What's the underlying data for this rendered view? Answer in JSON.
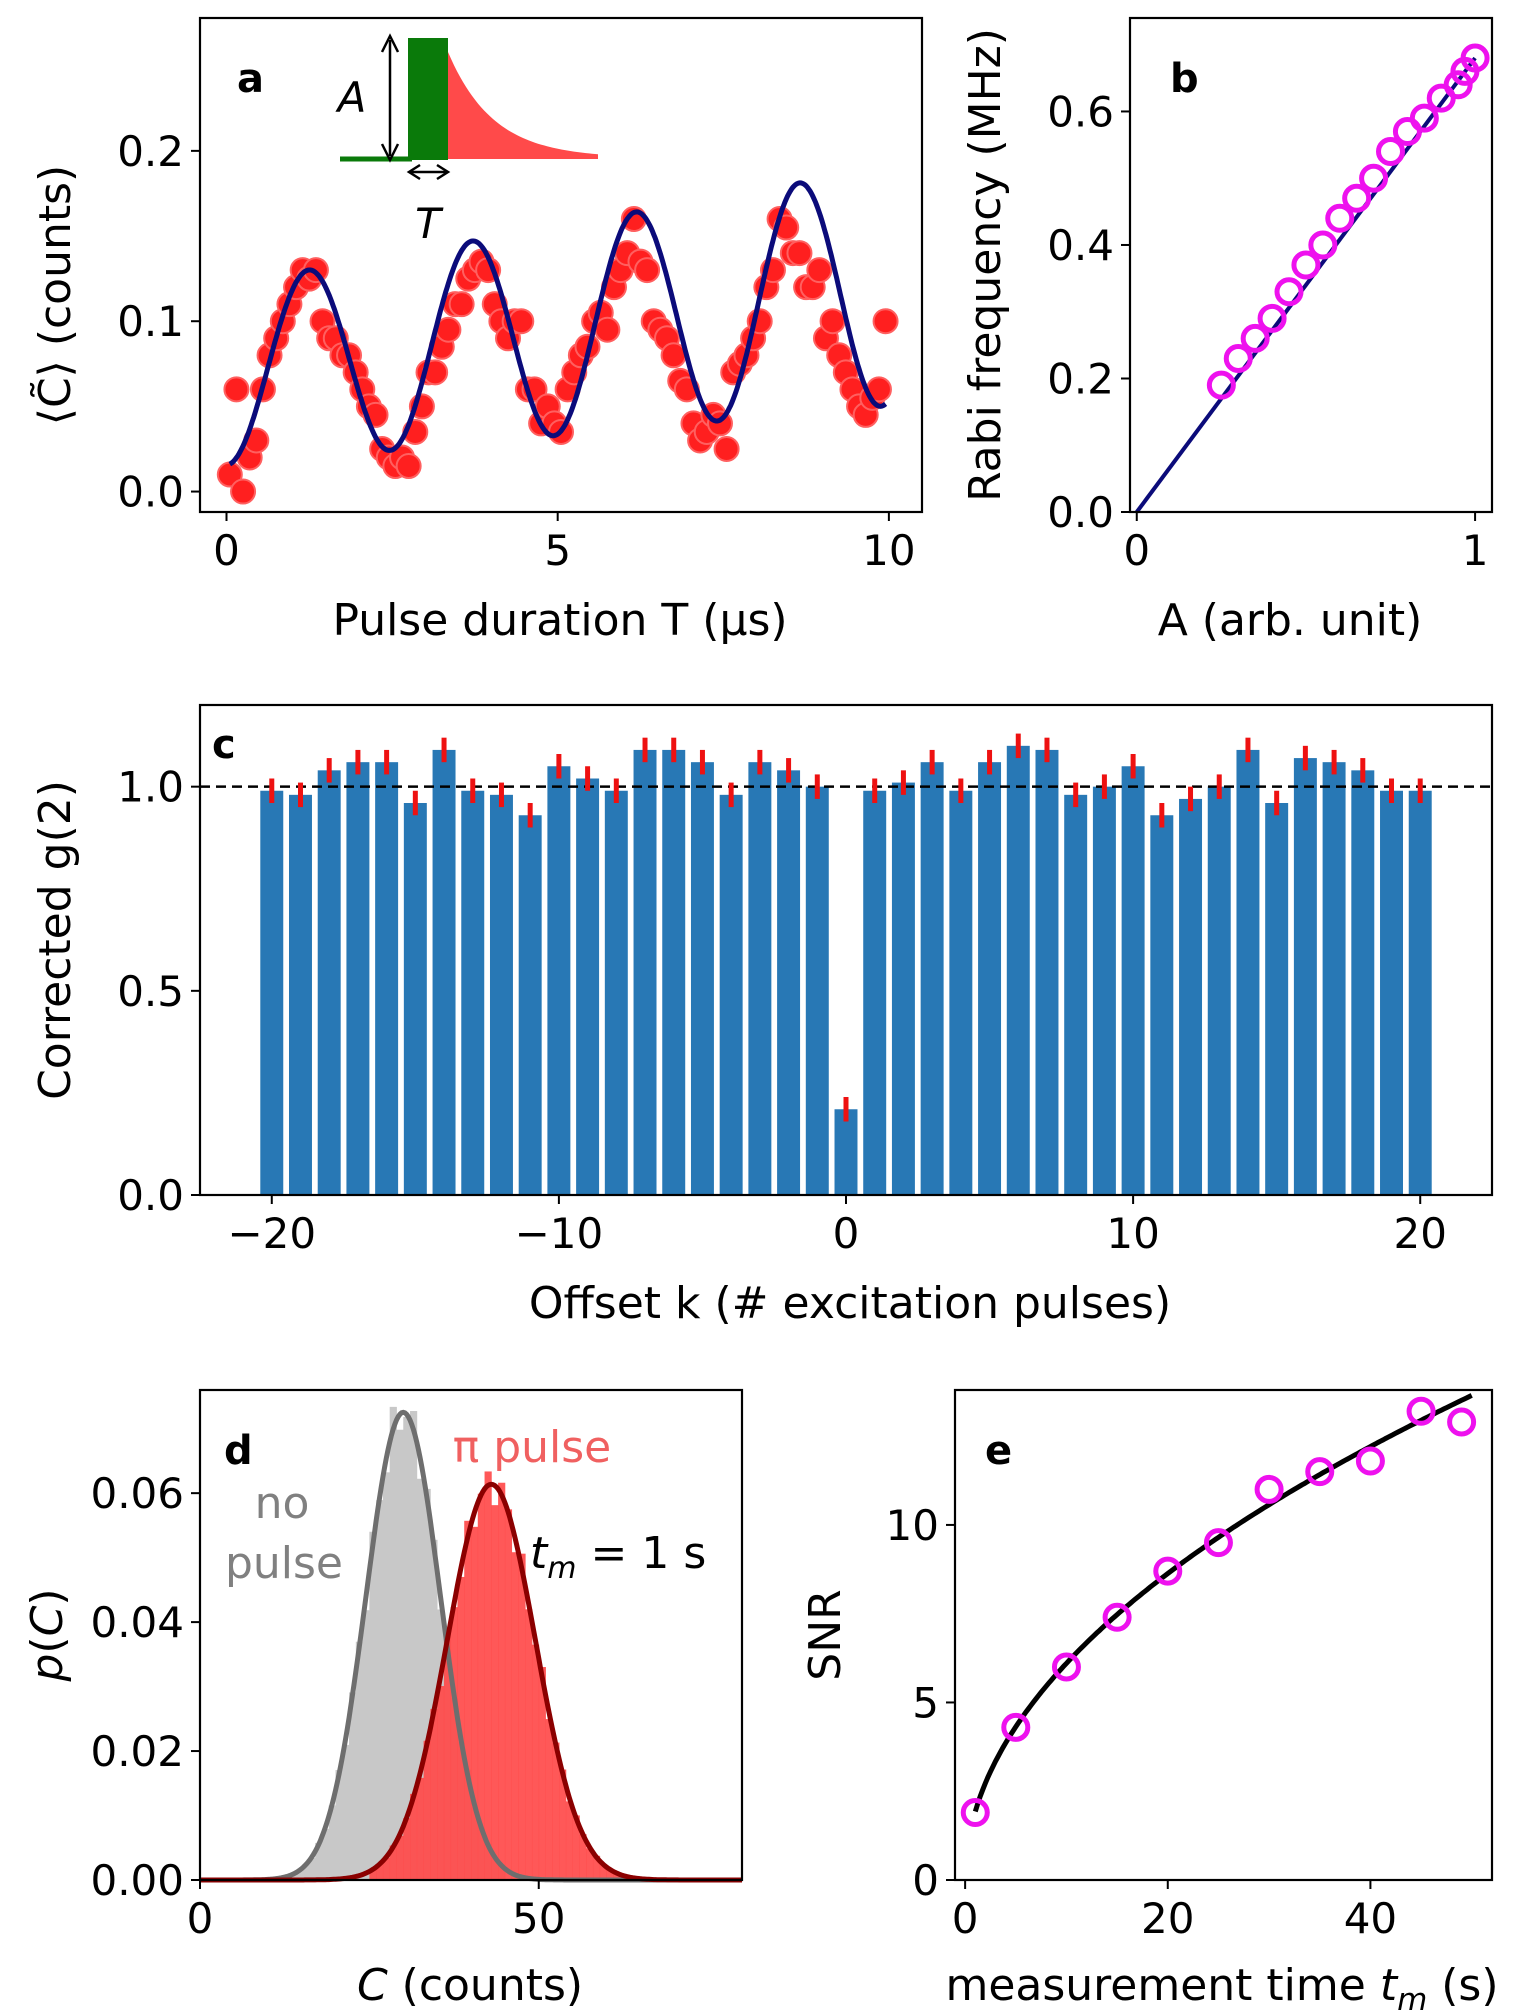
{
  "panels": {
    "a": {
      "label": "a",
      "xlabel": "Pulse duration T (µs)",
      "ylabel": "⟨C̃⟩ (counts)",
      "xticks": [
        "0",
        "5",
        "10"
      ],
      "yticks": [
        "0.0",
        "0.1",
        "0.2"
      ],
      "inset": {
        "amp_label": "A",
        "dur_label": "T"
      }
    },
    "b": {
      "label": "b",
      "xlabel": "A (arb. unit)",
      "ylabel": "Rabi frequency (MHz)",
      "xticks": [
        "0",
        "1"
      ],
      "yticks": [
        "0.0",
        "0.2",
        "0.4",
        "0.6"
      ]
    },
    "c": {
      "label": "c",
      "xlabel": "Offset k (# excitation pulses)",
      "ylabel": "Corrected g(2)",
      "xticks": [
        "−20",
        "−10",
        "0",
        "10",
        "20"
      ],
      "yticks": [
        "0.0",
        "0.5",
        "1.0"
      ]
    },
    "d": {
      "label": "d",
      "xlabel": "C (counts)",
      "ylabel": "p(C)",
      "xticks": [
        "0",
        "50"
      ],
      "yticks": [
        "0.00",
        "0.02",
        "0.04",
        "0.06"
      ],
      "annotations": {
        "no_pulse": [
          "no",
          "pulse"
        ],
        "pi_pulse": "π pulse",
        "tm": "t_m = 1 s"
      }
    },
    "e": {
      "label": "e",
      "xlabel": "measurement time t_m (s)",
      "ylabel": "SNR",
      "xticks": [
        "0",
        "20",
        "40"
      ],
      "yticks": [
        "0",
        "5",
        "10"
      ]
    }
  },
  "colors": {
    "scatter_red": "#ff1f1f",
    "fit_navy": "#0b0b7a",
    "magenta": "#ee11ee",
    "bar_blue": "#2878b5",
    "errbar_red": "#ee1111",
    "gray_hist": "#c8c8c8",
    "gray_fit": "#6e6e6e",
    "red_hist": "#ff4a4a",
    "darkred_fit": "#8b0000",
    "green_pulse": "#0a7a0a",
    "pi_text": "#f06060",
    "gray_text": "#808080"
  },
  "chart_data": [
    {
      "panel": "a",
      "type": "scatter",
      "xlim": [
        -0.4,
        10.5
      ],
      "ylim": [
        -0.012,
        0.278
      ],
      "points": [
        [
          0.05,
          0.01
        ],
        [
          0.15,
          0.06
        ],
        [
          0.25,
          0.0
        ],
        [
          0.35,
          0.02
        ],
        [
          0.45,
          0.03
        ],
        [
          0.55,
          0.06
        ],
        [
          0.65,
          0.08
        ],
        [
          0.75,
          0.09
        ],
        [
          0.85,
          0.1
        ],
        [
          0.95,
          0.11
        ],
        [
          1.05,
          0.12
        ],
        [
          1.15,
          0.13
        ],
        [
          1.25,
          0.125
        ],
        [
          1.35,
          0.13
        ],
        [
          1.45,
          0.1
        ],
        [
          1.55,
          0.09
        ],
        [
          1.65,
          0.09
        ],
        [
          1.75,
          0.08
        ],
        [
          1.85,
          0.08
        ],
        [
          1.95,
          0.07
        ],
        [
          2.05,
          0.06
        ],
        [
          2.15,
          0.05
        ],
        [
          2.25,
          0.045
        ],
        [
          2.35,
          0.025
        ],
        [
          2.45,
          0.02
        ],
        [
          2.55,
          0.015
        ],
        [
          2.65,
          0.02
        ],
        [
          2.75,
          0.015
        ],
        [
          2.85,
          0.035
        ],
        [
          2.95,
          0.05
        ],
        [
          3.05,
          0.07
        ],
        [
          3.15,
          0.07
        ],
        [
          3.25,
          0.085
        ],
        [
          3.35,
          0.095
        ],
        [
          3.45,
          0.11
        ],
        [
          3.55,
          0.11
        ],
        [
          3.65,
          0.125
        ],
        [
          3.75,
          0.13
        ],
        [
          3.85,
          0.135
        ],
        [
          3.95,
          0.13
        ],
        [
          4.05,
          0.11
        ],
        [
          4.15,
          0.1
        ],
        [
          4.25,
          0.09
        ],
        [
          4.35,
          0.1
        ],
        [
          4.45,
          0.1
        ],
        [
          4.55,
          0.06
        ],
        [
          4.65,
          0.06
        ],
        [
          4.75,
          0.04
        ],
        [
          4.85,
          0.05
        ],
        [
          4.95,
          0.04
        ],
        [
          5.05,
          0.035
        ],
        [
          5.15,
          0.06
        ],
        [
          5.25,
          0.07
        ],
        [
          5.35,
          0.08
        ],
        [
          5.45,
          0.085
        ],
        [
          5.55,
          0.1
        ],
        [
          5.65,
          0.105
        ],
        [
          5.75,
          0.095
        ],
        [
          5.85,
          0.12
        ],
        [
          5.95,
          0.13
        ],
        [
          6.05,
          0.14
        ],
        [
          6.15,
          0.16
        ],
        [
          6.25,
          0.135
        ],
        [
          6.35,
          0.13
        ],
        [
          6.45,
          0.1
        ],
        [
          6.55,
          0.095
        ],
        [
          6.65,
          0.09
        ],
        [
          6.75,
          0.08
        ],
        [
          6.85,
          0.065
        ],
        [
          6.95,
          0.06
        ],
        [
          7.05,
          0.04
        ],
        [
          7.15,
          0.03
        ],
        [
          7.25,
          0.035
        ],
        [
          7.35,
          0.045
        ],
        [
          7.45,
          0.04
        ],
        [
          7.55,
          0.025
        ],
        [
          7.65,
          0.07
        ],
        [
          7.75,
          0.075
        ],
        [
          7.85,
          0.08
        ],
        [
          7.95,
          0.09
        ],
        [
          8.05,
          0.1
        ],
        [
          8.15,
          0.12
        ],
        [
          8.25,
          0.13
        ],
        [
          8.35,
          0.16
        ],
        [
          8.45,
          0.155
        ],
        [
          8.55,
          0.14
        ],
        [
          8.65,
          0.14
        ],
        [
          8.75,
          0.12
        ],
        [
          8.85,
          0.12
        ],
        [
          8.95,
          0.13
        ],
        [
          9.05,
          0.09
        ],
        [
          9.15,
          0.1
        ],
        [
          9.25,
          0.08
        ],
        [
          9.35,
          0.07
        ],
        [
          9.45,
          0.06
        ],
        [
          9.55,
          0.05
        ],
        [
          9.65,
          0.045
        ],
        [
          9.75,
          0.055
        ],
        [
          9.85,
          0.06
        ],
        [
          9.95,
          0.1
        ]
      ],
      "fit": {
        "baseline": 0.0155,
        "amplitude_start": 0.053,
        "amplitude_slope": 0.0017,
        "offset_slope": 0.0035,
        "period_us": 2.47
      }
    },
    {
      "panel": "b",
      "type": "scatter",
      "xlim": [
        -0.02,
        1.05
      ],
      "ylim": [
        0,
        0.74
      ],
      "x": [
        0.25,
        0.3,
        0.35,
        0.4,
        0.45,
        0.5,
        0.55,
        0.6,
        0.65,
        0.7,
        0.75,
        0.8,
        0.85,
        0.9,
        0.95,
        0.97,
        1.0
      ],
      "y": [
        0.19,
        0.23,
        0.26,
        0.29,
        0.33,
        0.37,
        0.4,
        0.44,
        0.47,
        0.5,
        0.54,
        0.57,
        0.59,
        0.62,
        0.64,
        0.66,
        0.68
      ],
      "fit": {
        "type": "linear",
        "slope": 0.68
      }
    },
    {
      "panel": "c",
      "type": "bar",
      "xlim": [
        -22.5,
        22.5
      ],
      "ylim": [
        0,
        1.2
      ],
      "reference_line": 1.0,
      "categories": [
        -20,
        -19,
        -18,
        -17,
        -16,
        -15,
        -14,
        -13,
        -12,
        -11,
        -10,
        -9,
        -8,
        -7,
        -6,
        -5,
        -4,
        -3,
        -2,
        -1,
        0,
        1,
        2,
        3,
        4,
        5,
        6,
        7,
        8,
        9,
        10,
        11,
        12,
        13,
        14,
        15,
        16,
        17,
        18,
        19,
        20
      ],
      "values": [
        0.99,
        0.98,
        1.04,
        1.06,
        1.06,
        0.96,
        1.09,
        0.99,
        0.98,
        0.93,
        1.05,
        1.02,
        0.99,
        1.09,
        1.09,
        1.06,
        0.98,
        1.06,
        1.04,
        1.0,
        0.21,
        0.99,
        1.01,
        1.06,
        0.99,
        1.06,
        1.1,
        1.09,
        0.98,
        1.0,
        1.05,
        0.93,
        0.97,
        1.0,
        1.09,
        0.96,
        1.07,
        1.06,
        1.04,
        0.99,
        0.99
      ],
      "errors": [
        0.03,
        0.03,
        0.03,
        0.03,
        0.03,
        0.03,
        0.03,
        0.03,
        0.03,
        0.03,
        0.03,
        0.03,
        0.03,
        0.03,
        0.03,
        0.03,
        0.03,
        0.03,
        0.03,
        0.03,
        0.03,
        0.03,
        0.03,
        0.03,
        0.03,
        0.03,
        0.03,
        0.03,
        0.03,
        0.03,
        0.03,
        0.03,
        0.03,
        0.03,
        0.03,
        0.03,
        0.03,
        0.03,
        0.03,
        0.03,
        0.03
      ]
    },
    {
      "panel": "d",
      "type": "area",
      "xlim": [
        0,
        80
      ],
      "ylim": [
        0,
        0.076
      ],
      "series": [
        {
          "name": "no pulse",
          "mean": 30,
          "sd": 5.5,
          "hist_range": [
            10,
            45
          ]
        },
        {
          "name": "π pulse",
          "mean": 43,
          "sd": 6.5,
          "hist_range": [
            25,
            62
          ]
        }
      ]
    },
    {
      "panel": "e",
      "type": "scatter",
      "xlim": [
        -1,
        52
      ],
      "ylim": [
        0,
        13.8
      ],
      "x": [
        1,
        5,
        10,
        15,
        20,
        25,
        30,
        35,
        40,
        45,
        49
      ],
      "y": [
        1.9,
        4.3,
        6.0,
        7.4,
        8.7,
        9.5,
        11.0,
        11.5,
        11.8,
        13.2,
        12.9
      ],
      "fit": {
        "type": "sqrt",
        "coef": 1.93
      }
    }
  ]
}
